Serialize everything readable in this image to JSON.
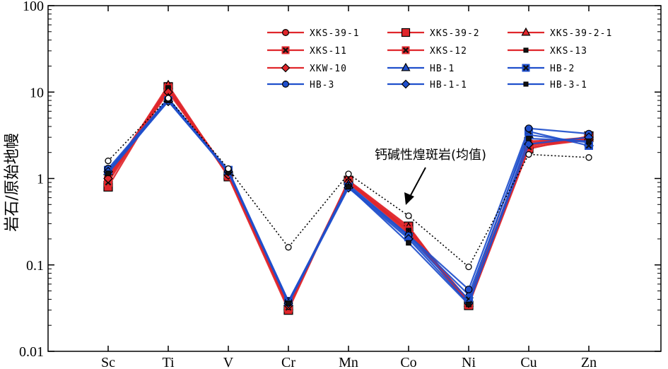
{
  "chart_data": {
    "type": "line",
    "title": "",
    "ylabel": "岩石/原始地幔",
    "xlabel": "",
    "yscale": "log",
    "ylim": [
      0.01,
      100
    ],
    "yticks": [
      "0.01",
      "0.1",
      "1",
      "10",
      "100"
    ],
    "categories": [
      "Sc",
      "Ti",
      "V",
      "Cr",
      "Mn",
      "Co",
      "Ni",
      "Cu",
      "Zn"
    ],
    "legend_position": "top-right",
    "colors": {
      "red": "#e0262b",
      "blue": "#1f4fcc",
      "reference": "#000000"
    },
    "series": [
      {
        "name": "XKS-39-1",
        "color": "red",
        "marker": "circle",
        "values": [
          1.05,
          10.5,
          1.1,
          0.033,
          0.9,
          0.26,
          0.038,
          2.6,
          3.0
        ]
      },
      {
        "name": "XKS-39-2",
        "color": "red",
        "marker": "square",
        "values": [
          0.8,
          11.5,
          1.05,
          0.03,
          0.95,
          0.28,
          0.034,
          2.2,
          3.1
        ]
      },
      {
        "name": "XKS-39-2-1",
        "color": "red",
        "marker": "triangle",
        "values": [
          1.0,
          12.0,
          1.08,
          0.033,
          0.93,
          0.27,
          0.036,
          2.4,
          2.9
        ]
      },
      {
        "name": "XKS-11",
        "color": "red",
        "marker": "cross-box",
        "values": [
          0.95,
          11.0,
          1.12,
          0.034,
          0.88,
          0.25,
          0.037,
          2.5,
          3.0
        ]
      },
      {
        "name": "XKS-12",
        "color": "red",
        "marker": "cross-box",
        "values": [
          0.9,
          10.8,
          1.1,
          0.032,
          0.9,
          0.24,
          0.035,
          2.3,
          2.8
        ]
      },
      {
        "name": "XKS-13",
        "color": "red",
        "marker": "small-square",
        "values": [
          1.1,
          11.2,
          1.15,
          0.035,
          0.92,
          0.25,
          0.039,
          2.7,
          2.9
        ]
      },
      {
        "name": "XKW-10",
        "color": "red",
        "marker": "diamond",
        "values": [
          1.0,
          10.0,
          1.1,
          0.034,
          0.9,
          0.23,
          0.037,
          2.5,
          2.8
        ]
      },
      {
        "name": "HB-1",
        "color": "blue",
        "marker": "triangle",
        "values": [
          1.2,
          8.5,
          1.2,
          0.037,
          0.85,
          0.22,
          0.045,
          3.2,
          2.6
        ]
      },
      {
        "name": "HB-2",
        "color": "blue",
        "marker": "cross-box",
        "values": [
          1.25,
          8.0,
          1.25,
          0.038,
          0.8,
          0.21,
          0.04,
          3.5,
          2.4
        ]
      },
      {
        "name": "HB-3",
        "color": "blue",
        "marker": "circle",
        "values": [
          1.3,
          8.3,
          1.22,
          0.038,
          0.82,
          0.22,
          0.052,
          3.8,
          3.3
        ]
      },
      {
        "name": "HB-1-1",
        "color": "blue",
        "marker": "diamond",
        "values": [
          1.2,
          7.8,
          1.2,
          0.036,
          0.78,
          0.2,
          0.036,
          2.5,
          3.0
        ]
      },
      {
        "name": "HB-3-1",
        "color": "blue",
        "marker": "small-square",
        "values": [
          1.15,
          8.0,
          1.18,
          0.036,
          0.8,
          0.18,
          0.035,
          2.9,
          2.7
        ]
      }
    ],
    "reference": {
      "name": "钙碱性煌斑岩(均值)",
      "marker": "open-circle",
      "style": "dotted",
      "values": [
        1.6,
        8.5,
        1.3,
        0.16,
        1.13,
        0.37,
        0.095,
        1.9,
        1.75
      ]
    }
  }
}
